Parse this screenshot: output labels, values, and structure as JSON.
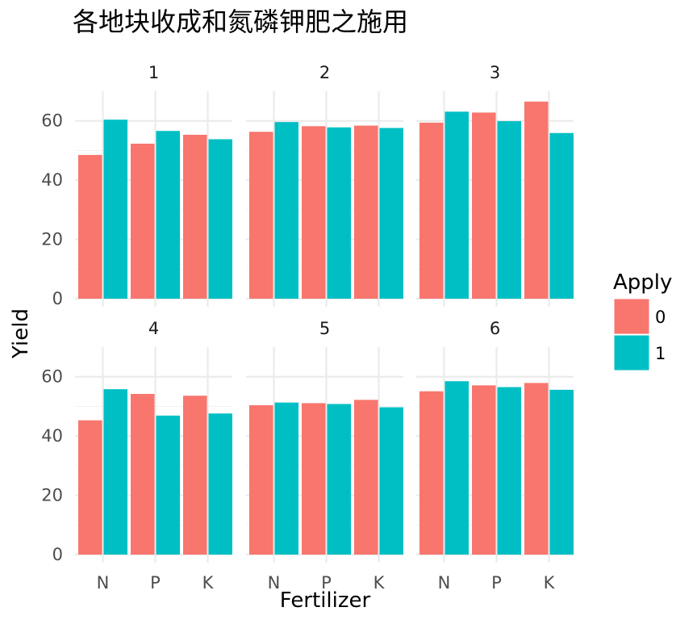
{
  "chart_data": {
    "type": "bar",
    "title": "各地块收成和氮磷钾肥之施用",
    "xlabel": "Fertilizer",
    "ylabel": "Yield",
    "categories": [
      "N",
      "P",
      "K"
    ],
    "ylim": [
      0,
      70
    ],
    "yticks": [
      0,
      20,
      40,
      60
    ],
    "grid": true,
    "legend": {
      "title": "Apply",
      "position": "right",
      "entries": [
        {
          "label": "0",
          "color": "#F8766D"
        },
        {
          "label": "1",
          "color": "#00BFC4"
        }
      ]
    },
    "panels": [
      {
        "label": "1",
        "series": [
          {
            "name": "0",
            "values": [
              48.5,
              52.3,
              55.3
            ]
          },
          {
            "name": "1",
            "values": [
              60.4,
              56.6,
              53.8
            ]
          }
        ]
      },
      {
        "label": "2",
        "series": [
          {
            "name": "0",
            "values": [
              56.3,
              58.2,
              58.4
            ]
          },
          {
            "name": "1",
            "values": [
              59.6,
              57.8,
              57.6
            ]
          }
        ]
      },
      {
        "label": "3",
        "series": [
          {
            "name": "0",
            "values": [
              59.4,
              62.8,
              66.5
            ]
          },
          {
            "name": "1",
            "values": [
              63.1,
              59.9,
              55.9
            ]
          }
        ]
      },
      {
        "label": "4",
        "series": [
          {
            "name": "0",
            "values": [
              45.3,
              54.2,
              53.6
            ]
          },
          {
            "name": "1",
            "values": [
              55.8,
              46.9,
              47.6
            ]
          }
        ]
      },
      {
        "label": "5",
        "series": [
          {
            "name": "0",
            "values": [
              50.4,
              51.1,
              52.2
            ]
          },
          {
            "name": "1",
            "values": [
              51.3,
              50.8,
              49.7
            ]
          }
        ]
      },
      {
        "label": "6",
        "series": [
          {
            "name": "0",
            "values": [
              55.1,
              57.1,
              57.9
            ]
          },
          {
            "name": "1",
            "values": [
              58.5,
              56.5,
              55.6
            ]
          }
        ]
      }
    ]
  }
}
